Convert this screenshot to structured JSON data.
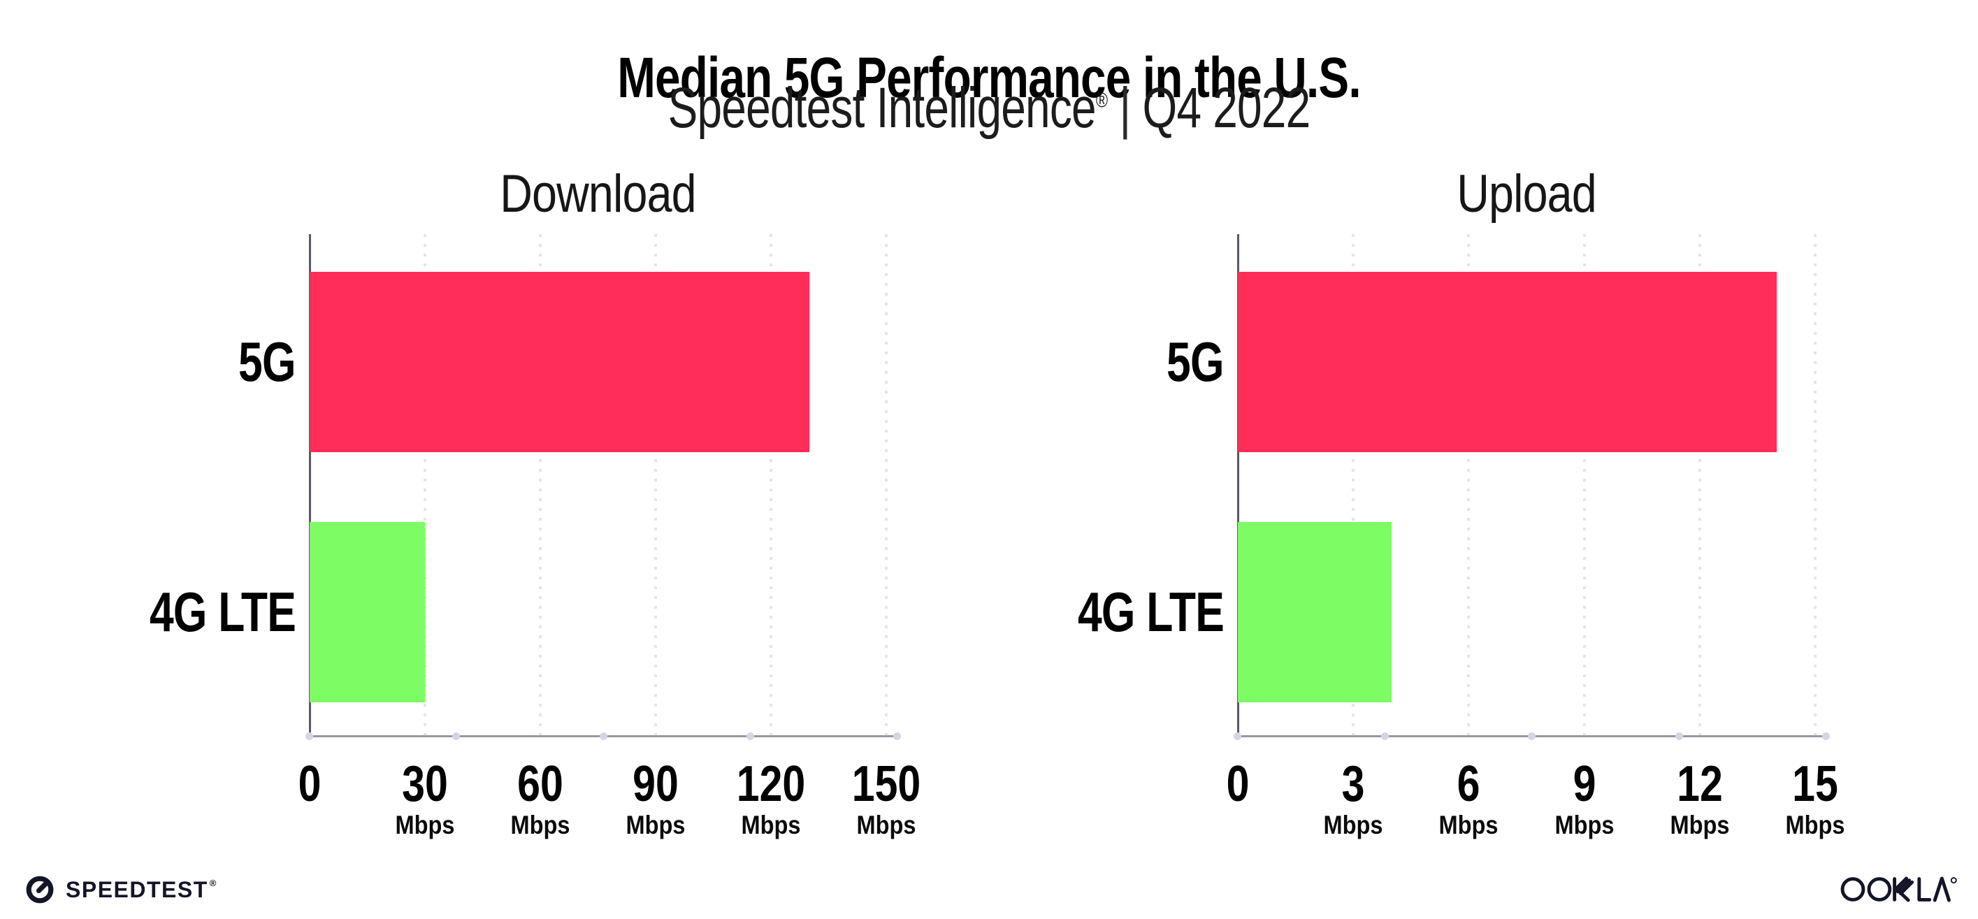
{
  "header": {
    "title": "Median 5G Performance in the U.S.",
    "subtitle_brand": "Speedtest Intelligence",
    "subtitle_reg": "®",
    "subtitle_sep": "|",
    "subtitle_period": "Q4 2022"
  },
  "chart_data": [
    {
      "type": "bar",
      "orientation": "horizontal",
      "title": "Download",
      "categories": [
        "5G",
        "4G LTE"
      ],
      "values": [
        130,
        30
      ],
      "unit": "Mbps",
      "xlim": [
        0,
        150
      ],
      "xticks": [
        0,
        30,
        60,
        90,
        120,
        150
      ],
      "bar_colors": [
        "#FF2D57",
        "#7EFC64"
      ],
      "grid": "dotted-vertical",
      "legend": "none"
    },
    {
      "type": "bar",
      "orientation": "horizontal",
      "title": "Upload",
      "categories": [
        "5G",
        "4G LTE"
      ],
      "values": [
        14,
        4
      ],
      "unit": "Mbps",
      "xlim": [
        0,
        15
      ],
      "xticks": [
        0,
        3,
        6,
        9,
        12,
        15
      ],
      "bar_colors": [
        "#FF2D57",
        "#7EFC64"
      ],
      "grid": "dotted-vertical",
      "legend": "none"
    }
  ],
  "colors": {
    "bar_5g": "#FF2D57",
    "bar_4g_lte": "#7EFC64",
    "y_axis": "#5c5866",
    "x_axis": "#9898a0",
    "gridline": "#e3e3ef",
    "text": "#000000",
    "footer_brand": "#141526"
  },
  "footer": {
    "speedtest_label": "SPEEDTEST",
    "speedtest_mark": "®",
    "ookla_label": "OOKLA",
    "ookla_mark": "®"
  }
}
